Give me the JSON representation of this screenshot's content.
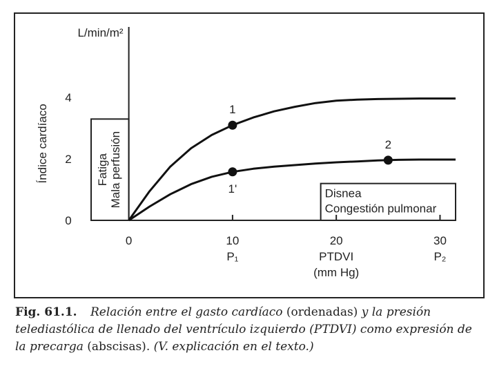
{
  "chart_data": {
    "type": "line",
    "title": "",
    "x": [
      0,
      2,
      4,
      6,
      8,
      10,
      12,
      14,
      16,
      18,
      20,
      22,
      24,
      26,
      28,
      30,
      31.5
    ],
    "series": [
      {
        "name": "upper",
        "values": [
          0,
          0.95,
          1.75,
          2.35,
          2.78,
          3.1,
          3.35,
          3.55,
          3.7,
          3.82,
          3.9,
          3.93,
          3.95,
          3.96,
          3.97,
          3.97,
          3.97
        ]
      },
      {
        "name": "lower",
        "values": [
          0,
          0.45,
          0.85,
          1.18,
          1.42,
          1.58,
          1.68,
          1.75,
          1.8,
          1.85,
          1.89,
          1.92,
          1.95,
          1.97,
          1.98,
          1.98,
          1.98
        ]
      }
    ],
    "points": [
      {
        "label": "1",
        "x": 10,
        "y": 3.1
      },
      {
        "label": "1'",
        "x": 10,
        "y": 1.58
      },
      {
        "label": "2",
        "x": 25,
        "y": 1.96
      }
    ],
    "xlim": [
      -3.5,
      31.5
    ],
    "ylim": [
      0,
      6.3
    ],
    "xticks": [
      {
        "value": 0,
        "label": "0",
        "sub": ""
      },
      {
        "value": 10,
        "label": "10",
        "sub": "P₁"
      },
      {
        "value": 20,
        "label": "20",
        "sub": "PTDVI"
      },
      {
        "value": 30,
        "label": "30",
        "sub": "P₂"
      }
    ],
    "xlabel_extra": "(mm Hg)",
    "yticks": [
      {
        "value": 0,
        "label": "0"
      },
      {
        "value": 2,
        "label": "2"
      },
      {
        "value": 4,
        "label": "4"
      }
    ],
    "yunit": "L/min/m²",
    "ylabel": "Índice cardíaco",
    "region_left": {
      "line1": "Fatiga",
      "line2": "Mala perfusión",
      "x_from": -3.5,
      "x_to": 0,
      "y_to": 3.3
    },
    "region_right": {
      "line1": "Disnea",
      "line2": "Congestión pulmonar",
      "x_from": 18.5,
      "x_to": 31.5,
      "y_to": 1.2
    }
  },
  "caption": {
    "fig": "Fig. 61.1.",
    "text1": "Relación entre el gasto cardíaco",
    "paren1": "(ordenadas)",
    "text2": "y la presión telediastólica de llenado del ventrículo izquierdo (PTDVI) como expresión de la precarga",
    "paren2": "(abscisas).",
    "text3": "(V. explicación en el texto.)"
  }
}
